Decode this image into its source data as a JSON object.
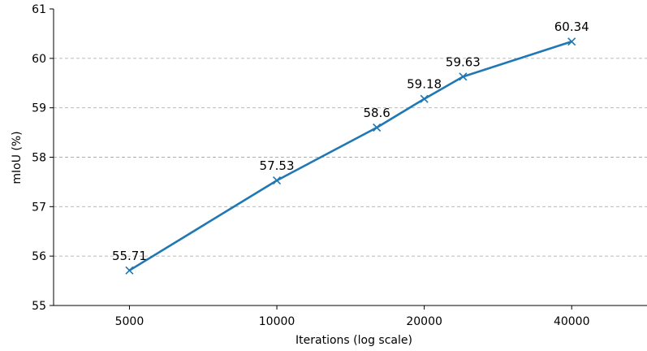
{
  "chart_data": {
    "type": "line",
    "xlabel": "Iterations (log scale)",
    "ylabel": "mIoU (%)",
    "x_scale": "log",
    "xlim": [
      3500,
      57000
    ],
    "ylim": [
      55,
      61
    ],
    "x_ticks": [
      5000,
      10000,
      20000,
      40000
    ],
    "y_ticks": [
      55,
      56,
      57,
      58,
      59,
      60,
      61
    ],
    "grid": "y-dashed",
    "legend": "none",
    "series": [
      {
        "color": "#1f77b4",
        "marker": "x",
        "points": [
          {
            "x": 5000,
            "y": 55.71,
            "label": "55.71"
          },
          {
            "x": 10000,
            "y": 57.53,
            "label": "57.53"
          },
          {
            "x": 16000,
            "y": 58.6,
            "label": "58.6"
          },
          {
            "x": 20000,
            "y": 59.18,
            "label": "59.18"
          },
          {
            "x": 24000,
            "y": 59.63,
            "label": "59.63"
          },
          {
            "x": 40000,
            "y": 60.34,
            "label": "60.34"
          }
        ]
      }
    ]
  }
}
